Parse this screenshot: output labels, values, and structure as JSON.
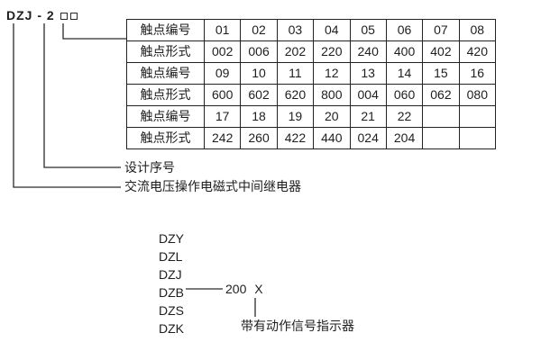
{
  "model_code": {
    "prefix": "DZJ - 2",
    "placeholder_boxes": 2
  },
  "contact_table": {
    "rows": [
      {
        "label": "触点编号",
        "values": [
          "01",
          "02",
          "03",
          "04",
          "05",
          "06",
          "07",
          "08"
        ]
      },
      {
        "label": "触点形式",
        "values": [
          "002",
          "006",
          "202",
          "220",
          "240",
          "400",
          "402",
          "420"
        ]
      },
      {
        "label": "触点编号",
        "values": [
          "09",
          "10",
          "11",
          "12",
          "13",
          "14",
          "15",
          "16"
        ]
      },
      {
        "label": "触点形式",
        "values": [
          "600",
          "602",
          "620",
          "800",
          "004",
          "060",
          "062",
          "080"
        ]
      },
      {
        "label": "触点编号",
        "values": [
          "17",
          "18",
          "19",
          "20",
          "21",
          "22",
          "",
          ""
        ]
      },
      {
        "label": "触点形式",
        "values": [
          "242",
          "260",
          "422",
          "440",
          "024",
          "204",
          "",
          ""
        ]
      }
    ]
  },
  "annotations": {
    "design_serial": "设计序号",
    "relay_description": "交流电压操作电磁式中间继电器"
  },
  "series": {
    "items": [
      "DZY",
      "DZL",
      "DZJ",
      "DZB",
      "DZS",
      "DZK"
    ],
    "dzb_suffix": "200 X",
    "indicator_note": "带有动作信号指示器"
  },
  "colors": {
    "text": "#1e1e1e",
    "line": "#2a2a2a",
    "background": "#ffffff"
  }
}
